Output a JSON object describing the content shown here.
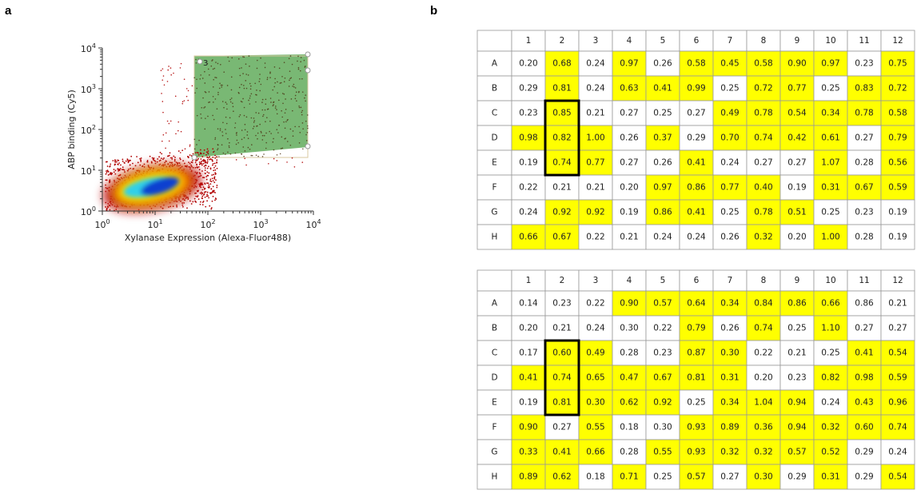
{
  "panel_a": {
    "label": "a",
    "x_label": "Xylanase Expression (Alexa-Fluor488)",
    "y_label": "ABP binding (Cy5)",
    "gate_label": "3",
    "xticks": [
      {
        "base": "10",
        "exp": "0"
      },
      {
        "base": "10",
        "exp": "1"
      },
      {
        "base": "10",
        "exp": "2"
      },
      {
        "base": "10",
        "exp": "3"
      },
      {
        "base": "10",
        "exp": "4"
      }
    ],
    "yticks": [
      {
        "base": "10",
        "exp": "0"
      },
      {
        "base": "10",
        "exp": "1"
      },
      {
        "base": "10",
        "exp": "2"
      },
      {
        "base": "10",
        "exp": "3"
      },
      {
        "base": "10",
        "exp": "4"
      }
    ]
  },
  "panel_b": {
    "label": "b",
    "columns": [
      "1",
      "2",
      "3",
      "4",
      "5",
      "6",
      "7",
      "8",
      "9",
      "10",
      "11",
      "12"
    ],
    "plates": [
      {
        "rows": [
          {
            "label": "A",
            "cells": [
              "0.20",
              "0.68",
              "0.24",
              "0.97",
              "0.26",
              "0.58",
              "0.45",
              "0.58",
              "0.90",
              "0.97",
              "0.23",
              "0.75"
            ],
            "highlight": [
              false,
              true,
              false,
              true,
              false,
              true,
              true,
              true,
              true,
              true,
              false,
              true
            ]
          },
          {
            "label": "B",
            "cells": [
              "0.29",
              "0.81",
              "0.24",
              "0.63",
              "0.41",
              "0.99",
              "0.25",
              "0.72",
              "0.77",
              "0.25",
              "0.83",
              "0.72"
            ],
            "highlight": [
              false,
              true,
              false,
              true,
              true,
              true,
              false,
              true,
              true,
              false,
              true,
              true
            ]
          },
          {
            "label": "C",
            "cells": [
              "0.23",
              "0.85",
              "0.21",
              "0.27",
              "0.25",
              "0.27",
              "0.49",
              "0.78",
              "0.54",
              "0.34",
              "0.78",
              "0.58"
            ],
            "highlight": [
              false,
              true,
              false,
              false,
              false,
              false,
              true,
              true,
              true,
              true,
              true,
              true
            ]
          },
          {
            "label": "D",
            "cells": [
              "0.98",
              "0.82",
              "1.00",
              "0.26",
              "0.37",
              "0.29",
              "0.70",
              "0.74",
              "0.42",
              "0.61",
              "0.27",
              "0.79"
            ],
            "highlight": [
              true,
              true,
              true,
              false,
              true,
              false,
              true,
              true,
              true,
              true,
              false,
              true
            ]
          },
          {
            "label": "E",
            "cells": [
              "0.19",
              "0.74",
              "0.77",
              "0.27",
              "0.26",
              "0.41",
              "0.24",
              "0.27",
              "0.27",
              "1.07",
              "0.28",
              "0.56"
            ],
            "highlight": [
              false,
              true,
              true,
              false,
              false,
              true,
              false,
              false,
              false,
              true,
              false,
              true
            ]
          },
          {
            "label": "F",
            "cells": [
              "0.22",
              "0.21",
              "0.21",
              "0.20",
              "0.97",
              "0.86",
              "0.77",
              "0.40",
              "0.19",
              "0.31",
              "0.67",
              "0.59"
            ],
            "highlight": [
              false,
              false,
              false,
              false,
              true,
              true,
              true,
              true,
              false,
              true,
              true,
              true
            ]
          },
          {
            "label": "G",
            "cells": [
              "0.24",
              "0.92",
              "0.92",
              "0.19",
              "0.86",
              "0.41",
              "0.25",
              "0.78",
              "0.51",
              "0.25",
              "0.23",
              "0.19"
            ],
            "highlight": [
              false,
              true,
              true,
              false,
              true,
              true,
              false,
              true,
              true,
              false,
              false,
              false
            ]
          },
          {
            "label": "H",
            "cells": [
              "0.66",
              "0.67",
              "0.22",
              "0.21",
              "0.24",
              "0.24",
              "0.26",
              "0.32",
              "0.20",
              "1.00",
              "0.28",
              "0.19"
            ],
            "highlight": [
              true,
              true,
              false,
              false,
              false,
              false,
              false,
              true,
              false,
              true,
              false,
              false
            ]
          }
        ]
      },
      {
        "rows": [
          {
            "label": "A",
            "cells": [
              "0.14",
              "0.23",
              "0.22",
              "0.90",
              "0.57",
              "0.64",
              "0.34",
              "0.84",
              "0.86",
              "0.66",
              "0.86",
              "0.21"
            ],
            "highlight": [
              false,
              false,
              false,
              true,
              true,
              true,
              true,
              true,
              true,
              true,
              false,
              false
            ]
          },
          {
            "label": "B",
            "cells": [
              "0.20",
              "0.21",
              "0.24",
              "0.30",
              "0.22",
              "0.79",
              "0.26",
              "0.74",
              "0.25",
              "1.10",
              "0.27",
              "0.27"
            ],
            "highlight": [
              false,
              false,
              false,
              false,
              false,
              true,
              false,
              true,
              false,
              true,
              false,
              false
            ]
          },
          {
            "label": "C",
            "cells": [
              "0.17",
              "0.60",
              "0.49",
              "0.28",
              "0.23",
              "0.87",
              "0.30",
              "0.22",
              "0.21",
              "0.25",
              "0.41",
              "0.54"
            ],
            "highlight": [
              false,
              true,
              true,
              false,
              false,
              true,
              true,
              false,
              false,
              false,
              true,
              true
            ]
          },
          {
            "label": "D",
            "cells": [
              "0.41",
              "0.74",
              "0.65",
              "0.47",
              "0.67",
              "0.81",
              "0.31",
              "0.20",
              "0.23",
              "0.82",
              "0.98",
              "0.59"
            ],
            "highlight": [
              true,
              true,
              true,
              true,
              true,
              true,
              true,
              false,
              false,
              true,
              true,
              true
            ]
          },
          {
            "label": "E",
            "cells": [
              "0.19",
              "0.81",
              "0.30",
              "0.62",
              "0.92",
              "0.25",
              "0.34",
              "1.04",
              "0.94",
              "0.24",
              "0.43",
              "0.96"
            ],
            "highlight": [
              false,
              true,
              true,
              true,
              true,
              false,
              true,
              true,
              true,
              false,
              true,
              true
            ]
          },
          {
            "label": "F",
            "cells": [
              "0.90",
              "0.27",
              "0.55",
              "0.18",
              "0.30",
              "0.93",
              "0.89",
              "0.36",
              "0.94",
              "0.32",
              "0.60",
              "0.74"
            ],
            "highlight": [
              true,
              false,
              true,
              false,
              false,
              true,
              true,
              true,
              true,
              true,
              true,
              true
            ]
          },
          {
            "label": "G",
            "cells": [
              "0.33",
              "0.41",
              "0.66",
              "0.28",
              "0.55",
              "0.93",
              "0.32",
              "0.32",
              "0.57",
              "0.52",
              "0.29",
              "0.24"
            ],
            "highlight": [
              true,
              true,
              true,
              false,
              true,
              true,
              true,
              true,
              true,
              true,
              false,
              false
            ]
          },
          {
            "label": "H",
            "cells": [
              "0.89",
              "0.62",
              "0.18",
              "0.71",
              "0.25",
              "0.57",
              "0.27",
              "0.30",
              "0.29",
              "0.31",
              "0.29",
              "0.54"
            ],
            "highlight": [
              true,
              true,
              false,
              true,
              false,
              true,
              false,
              true,
              false,
              true,
              false,
              true
            ]
          }
        ]
      }
    ]
  }
}
